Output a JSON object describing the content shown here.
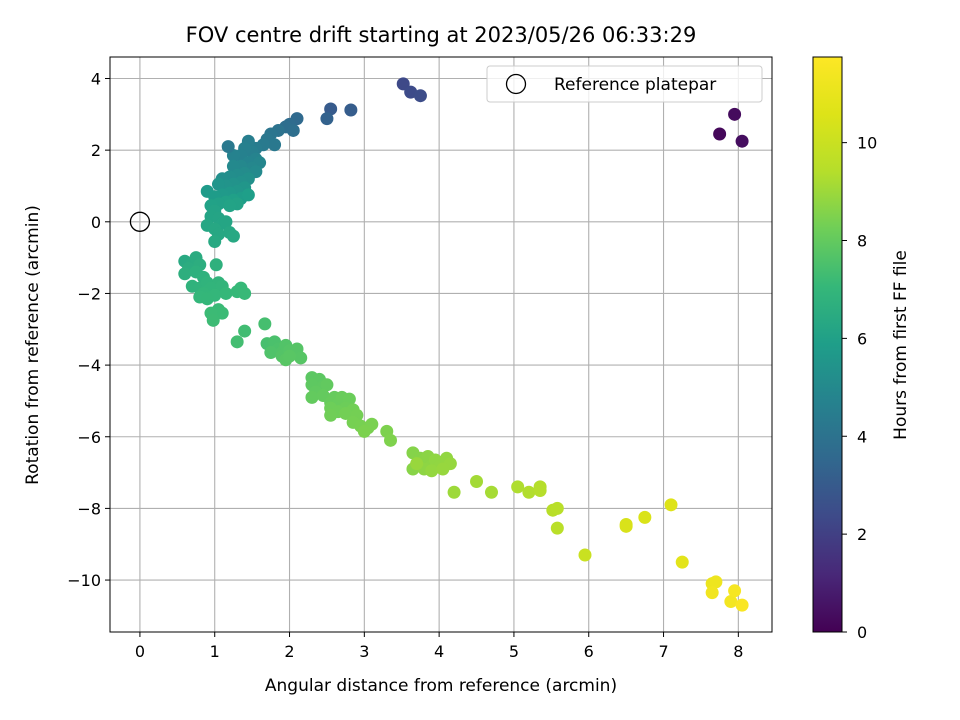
{
  "chart_data": {
    "type": "scatter",
    "title": "FOV centre drift starting at 2023/05/26 06:33:29",
    "xlabel": "Angular distance from reference (arcmin)",
    "ylabel": "Rotation from reference (arcmin)",
    "xlim": [
      -0.4,
      8.45
    ],
    "ylim": [
      -11.45,
      4.6
    ],
    "xticks": [
      0,
      1,
      2,
      3,
      4,
      5,
      6,
      7,
      8
    ],
    "yticks": [
      -10,
      -8,
      -6,
      -4,
      -2,
      0,
      2,
      4
    ],
    "xtick_labels": [
      "0",
      "1",
      "2",
      "3",
      "4",
      "5",
      "6",
      "7",
      "8"
    ],
    "ytick_labels": [
      "−10",
      "−8",
      "−6",
      "−4",
      "−2",
      "0",
      "2",
      "4"
    ],
    "grid": true,
    "legend": {
      "position": "top-right",
      "entries": [
        "Reference platepar"
      ]
    },
    "reference_point": {
      "x": 0,
      "y": 0,
      "label": "Reference platepar"
    },
    "colorbar": {
      "label": "Hours from first FF file",
      "colormap": "viridis",
      "range": [
        0,
        11.75
      ],
      "ticks": [
        0,
        2,
        4,
        6,
        8,
        10
      ],
      "tick_labels": [
        "0",
        "2",
        "4",
        "6",
        "8",
        "10"
      ]
    },
    "points": [
      [
        7.75,
        2.45,
        0.2
      ],
      [
        7.95,
        3.0,
        0.3
      ],
      [
        8.05,
        2.25,
        0.35
      ],
      [
        3.52,
        3.85,
        2.3
      ],
      [
        3.62,
        3.62,
        2.4
      ],
      [
        3.75,
        3.52,
        2.45
      ],
      [
        2.55,
        3.15,
        3.0
      ],
      [
        2.82,
        3.12,
        3.1
      ],
      [
        2.5,
        2.88,
        3.3
      ],
      [
        2.1,
        2.88,
        3.6
      ],
      [
        2.0,
        2.72,
        3.7
      ],
      [
        1.95,
        2.65,
        3.8
      ],
      [
        2.05,
        2.55,
        3.85
      ],
      [
        1.85,
        2.55,
        4.0
      ],
      [
        1.75,
        2.45,
        4.1
      ],
      [
        1.7,
        2.3,
        4.2
      ],
      [
        1.8,
        2.15,
        4.25
      ],
      [
        1.65,
        2.15,
        4.35
      ],
      [
        1.55,
        2.05,
        4.45
      ],
      [
        1.45,
        2.25,
        4.5
      ],
      [
        1.5,
        1.95,
        4.55
      ],
      [
        1.4,
        2.05,
        4.6
      ],
      [
        1.35,
        1.85,
        4.65
      ],
      [
        1.25,
        1.85,
        4.7
      ],
      [
        1.55,
        1.75,
        4.75
      ],
      [
        1.45,
        1.65,
        4.8
      ],
      [
        1.6,
        1.65,
        4.85
      ],
      [
        1.5,
        1.5,
        4.9
      ],
      [
        1.35,
        1.55,
        4.95
      ],
      [
        1.25,
        1.55,
        5.0
      ],
      [
        1.55,
        1.4,
        5.05
      ],
      [
        1.4,
        1.35,
        5.1
      ],
      [
        1.3,
        1.3,
        5.15
      ],
      [
        1.2,
        1.25,
        5.2
      ],
      [
        1.1,
        1.2,
        5.25
      ],
      [
        1.45,
        1.2,
        5.3
      ],
      [
        1.35,
        1.1,
        5.35
      ],
      [
        1.25,
        1.05,
        5.4
      ],
      [
        1.15,
        1.0,
        5.45
      ],
      [
        1.05,
        1.05,
        5.5
      ],
      [
        1.4,
        0.95,
        5.55
      ],
      [
        1.3,
        0.85,
        5.6
      ],
      [
        1.2,
        0.8,
        5.65
      ],
      [
        1.1,
        0.75,
        5.7
      ],
      [
        0.9,
        0.85,
        5.75
      ],
      [
        1.0,
        0.7,
        5.8
      ],
      [
        1.35,
        0.65,
        5.85
      ],
      [
        1.45,
        0.75,
        5.9
      ],
      [
        1.25,
        0.6,
        5.95
      ],
      [
        1.15,
        0.55,
        6.0
      ],
      [
        1.05,
        0.5,
        6.02
      ],
      [
        0.95,
        0.45,
        6.05
      ],
      [
        1.3,
        0.5,
        6.08
      ],
      [
        1.2,
        0.45,
        6.1
      ],
      [
        1.0,
        0.3,
        6.12
      ],
      [
        0.95,
        0.15,
        6.15
      ],
      [
        1.05,
        0.1,
        6.18
      ],
      [
        1.1,
        -0.05,
        6.2
      ],
      [
        1.15,
        0.0,
        6.22
      ],
      [
        0.9,
        -0.1,
        6.25
      ],
      [
        1.0,
        -0.2,
        6.28
      ],
      [
        1.05,
        -0.35,
        6.3
      ],
      [
        1.2,
        -0.3,
        6.32
      ],
      [
        1.25,
        -0.4,
        6.35
      ],
      [
        1.0,
        -0.55,
        6.38
      ],
      [
        1.18,
        2.1,
        4.3
      ],
      [
        0.6,
        -1.1,
        6.4
      ],
      [
        0.7,
        -1.15,
        6.45
      ],
      [
        0.75,
        -1.0,
        6.5
      ],
      [
        0.65,
        -1.3,
        6.55
      ],
      [
        0.8,
        -1.2,
        6.6
      ],
      [
        0.6,
        -1.45,
        6.65
      ],
      [
        0.75,
        -1.4,
        6.7
      ],
      [
        1.02,
        -1.2,
        6.72
      ],
      [
        0.85,
        -1.55,
        6.75
      ],
      [
        0.7,
        -1.8,
        6.8
      ],
      [
        0.8,
        -1.85,
        6.82
      ],
      [
        0.9,
        -1.7,
        6.85
      ],
      [
        1.05,
        -1.7,
        6.88
      ],
      [
        0.95,
        -1.85,
        6.9
      ],
      [
        1.1,
        -1.8,
        6.92
      ],
      [
        0.85,
        -2.0,
        6.95
      ],
      [
        1.0,
        -2.05,
        6.98
      ],
      [
        0.8,
        -2.1,
        7.0
      ],
      [
        0.9,
        -2.15,
        7.02
      ],
      [
        1.15,
        -2.0,
        7.05
      ],
      [
        1.3,
        -1.95,
        7.08
      ],
      [
        1.35,
        -1.85,
        7.1
      ],
      [
        1.4,
        -2.0,
        7.12
      ],
      [
        1.05,
        -2.45,
        7.15
      ],
      [
        1.1,
        -2.55,
        7.18
      ],
      [
        0.95,
        -2.55,
        7.2
      ],
      [
        0.98,
        -2.75,
        7.22
      ],
      [
        1.4,
        -3.05,
        7.3
      ],
      [
        1.3,
        -3.35,
        7.35
      ],
      [
        1.67,
        -2.85,
        7.4
      ],
      [
        1.7,
        -3.4,
        7.45
      ],
      [
        1.8,
        -3.35,
        7.5
      ],
      [
        1.85,
        -3.55,
        7.55
      ],
      [
        1.75,
        -3.65,
        7.6
      ],
      [
        1.9,
        -3.65,
        7.62
      ],
      [
        1.95,
        -3.45,
        7.65
      ],
      [
        1.9,
        -3.75,
        7.68
      ],
      [
        2.0,
        -3.6,
        7.7
      ],
      [
        2.1,
        -3.55,
        7.72
      ],
      [
        2.15,
        -3.8,
        7.75
      ],
      [
        1.95,
        -3.85,
        7.78
      ],
      [
        2.0,
        -3.75,
        7.8
      ],
      [
        2.3,
        -4.35,
        7.85
      ],
      [
        2.4,
        -4.4,
        7.88
      ],
      [
        2.3,
        -4.55,
        7.9
      ],
      [
        2.45,
        -4.6,
        7.92
      ],
      [
        2.35,
        -4.75,
        7.95
      ],
      [
        2.5,
        -4.55,
        7.98
      ],
      [
        2.3,
        -4.9,
        8.0
      ],
      [
        2.45,
        -4.85,
        8.02
      ],
      [
        2.6,
        -4.9,
        8.05
      ],
      [
        2.55,
        -5.05,
        8.08
      ],
      [
        2.65,
        -5.1,
        8.1
      ],
      [
        2.7,
        -4.9,
        8.12
      ],
      [
        2.8,
        -4.95,
        8.15
      ],
      [
        2.75,
        -5.2,
        8.18
      ],
      [
        2.55,
        -5.2,
        8.2
      ],
      [
        2.65,
        -5.3,
        8.22
      ],
      [
        2.55,
        -5.4,
        8.25
      ],
      [
        2.85,
        -5.25,
        8.28
      ],
      [
        2.75,
        -5.35,
        8.3
      ],
      [
        2.9,
        -5.4,
        8.32
      ],
      [
        2.85,
        -5.6,
        8.35
      ],
      [
        2.95,
        -5.7,
        8.38
      ],
      [
        3.05,
        -5.75,
        8.4
      ],
      [
        3.1,
        -5.65,
        8.42
      ],
      [
        3.0,
        -5.85,
        8.45
      ],
      [
        3.3,
        -5.85,
        8.48
      ],
      [
        3.35,
        -6.1,
        8.5
      ],
      [
        3.65,
        -6.45,
        8.6
      ],
      [
        3.75,
        -6.6,
        8.62
      ],
      [
        3.65,
        -6.9,
        8.65
      ],
      [
        3.8,
        -6.65,
        8.68
      ],
      [
        3.85,
        -6.55,
        8.7
      ],
      [
        3.9,
        -6.8,
        8.72
      ],
      [
        3.8,
        -6.9,
        8.75
      ],
      [
        3.95,
        -6.65,
        8.78
      ],
      [
        4.0,
        -6.85,
        8.8
      ],
      [
        4.1,
        -6.6,
        8.82
      ],
      [
        3.9,
        -6.95,
        8.85
      ],
      [
        4.15,
        -6.75,
        8.88
      ],
      [
        4.05,
        -6.9,
        8.9
      ],
      [
        3.7,
        -6.75,
        8.92
      ],
      [
        4.2,
        -7.55,
        9.0
      ],
      [
        4.5,
        -7.25,
        9.1
      ],
      [
        4.7,
        -7.55,
        9.15
      ],
      [
        5.05,
        -7.4,
        9.3
      ],
      [
        5.2,
        -7.55,
        9.35
      ],
      [
        5.35,
        -7.4,
        9.4
      ],
      [
        5.35,
        -7.5,
        9.42
      ],
      [
        5.52,
        -8.05,
        9.5
      ],
      [
        5.58,
        -8.0,
        9.52
      ],
      [
        5.58,
        -8.55,
        9.55
      ],
      [
        5.95,
        -9.3,
        10.0
      ],
      [
        6.5,
        -8.45,
        10.4
      ],
      [
        6.5,
        -8.5,
        10.45
      ],
      [
        6.75,
        -8.25,
        10.5
      ],
      [
        7.1,
        -7.9,
        10.6
      ],
      [
        7.25,
        -9.5,
        10.8
      ],
      [
        7.65,
        -10.1,
        11.1
      ],
      [
        7.7,
        -10.05,
        11.2
      ],
      [
        7.65,
        -10.35,
        11.3
      ],
      [
        7.9,
        -10.6,
        11.4
      ],
      [
        7.95,
        -10.3,
        11.5
      ],
      [
        8.05,
        -10.7,
        11.6
      ]
    ]
  }
}
